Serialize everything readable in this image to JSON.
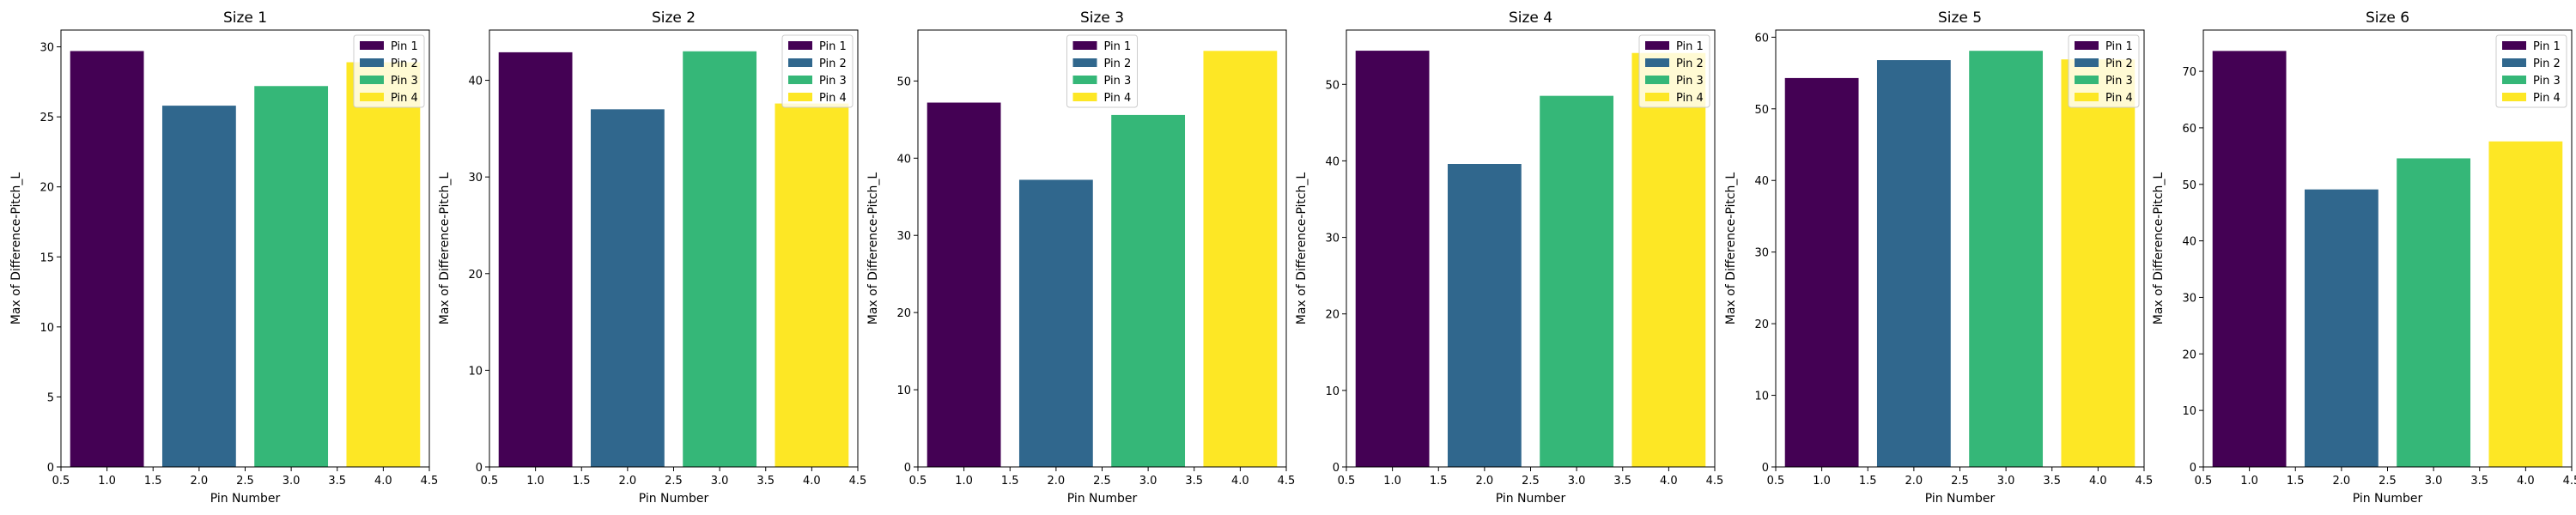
{
  "chart_data": [
    {
      "type": "bar",
      "title": "Size 1",
      "xlabel": "Pin Number",
      "ylabel": "Max of Difference-Pitch_L",
      "x": [
        1,
        2,
        3,
        4
      ],
      "values": [
        29.7,
        25.8,
        27.2,
        28.9
      ],
      "xlim": [
        0.5,
        4.5
      ],
      "ylim": [
        0,
        31.2
      ],
      "xticks": [
        "0.5",
        "1.0",
        "1.5",
        "2.0",
        "2.5",
        "3.0",
        "3.5",
        "4.0",
        "4.5"
      ],
      "yticks": [
        0,
        5,
        10,
        15,
        20,
        25,
        30
      ],
      "legend": [
        "Pin 1",
        "Pin 2",
        "Pin 3",
        "Pin 4"
      ],
      "legend_loc": "top-right",
      "grid": false
    },
    {
      "type": "bar",
      "title": "Size 2",
      "xlabel": "Pin Number",
      "ylabel": "Max of Difference-Pitch_L",
      "x": [
        1,
        2,
        3,
        4
      ],
      "values": [
        42.9,
        37.0,
        43.0,
        37.6
      ],
      "xlim": [
        0.5,
        4.5
      ],
      "ylim": [
        0,
        45.2
      ],
      "xticks": [
        "0.5",
        "1.0",
        "1.5",
        "2.0",
        "2.5",
        "3.0",
        "3.5",
        "4.0",
        "4.5"
      ],
      "yticks": [
        0,
        10,
        20,
        30,
        40
      ],
      "legend": [
        "Pin 1",
        "Pin 2",
        "Pin 3",
        "Pin 4"
      ],
      "legend_loc": "top-right",
      "grid": false
    },
    {
      "type": "bar",
      "title": "Size 3",
      "xlabel": "Pin Number",
      "ylabel": "Max of Difference-Pitch_L",
      "x": [
        1,
        2,
        3,
        4
      ],
      "values": [
        47.2,
        37.2,
        45.6,
        53.9
      ],
      "xlim": [
        0.5,
        4.5
      ],
      "ylim": [
        0,
        56.6
      ],
      "xticks": [
        "0.5",
        "1.0",
        "1.5",
        "2.0",
        "2.5",
        "3.0",
        "3.5",
        "4.0",
        "4.5"
      ],
      "yticks": [
        0,
        10,
        20,
        30,
        40,
        50
      ],
      "legend": [
        "Pin 1",
        "Pin 2",
        "Pin 3",
        "Pin 4"
      ],
      "legend_loc": "top-center",
      "grid": false
    },
    {
      "type": "bar",
      "title": "Size 4",
      "xlabel": "Pin Number",
      "ylabel": "Max of Difference-Pitch_L",
      "x": [
        1,
        2,
        3,
        4
      ],
      "values": [
        54.4,
        39.6,
        48.5,
        54.1
      ],
      "xlim": [
        0.5,
        4.5
      ],
      "ylim": [
        0,
        57.1
      ],
      "xticks": [
        "0.5",
        "1.0",
        "1.5",
        "2.0",
        "2.5",
        "3.0",
        "3.5",
        "4.0",
        "4.5"
      ],
      "yticks": [
        0,
        10,
        20,
        30,
        40,
        50
      ],
      "legend": [
        "Pin 1",
        "Pin 2",
        "Pin 3",
        "Pin 4"
      ],
      "legend_loc": "top-right",
      "grid": false
    },
    {
      "type": "bar",
      "title": "Size 5",
      "xlabel": "Pin Number",
      "ylabel": "Max of Difference-Pitch_L",
      "x": [
        1,
        2,
        3,
        4
      ],
      "values": [
        54.3,
        56.8,
        58.1,
        56.9
      ],
      "xlim": [
        0.5,
        4.5
      ],
      "ylim": [
        0,
        61.0
      ],
      "xticks": [
        "0.5",
        "1.0",
        "1.5",
        "2.0",
        "2.5",
        "3.0",
        "3.5",
        "4.0",
        "4.5"
      ],
      "yticks": [
        0,
        10,
        20,
        30,
        40,
        50,
        60
      ],
      "legend": [
        "Pin 1",
        "Pin 2",
        "Pin 3",
        "Pin 4"
      ],
      "legend_loc": "top-right",
      "grid": false
    },
    {
      "type": "bar",
      "title": "Size 6",
      "xlabel": "Pin Number",
      "ylabel": "Max of Difference-Pitch_L",
      "x": [
        1,
        2,
        3,
        4
      ],
      "values": [
        73.6,
        49.1,
        54.6,
        57.6
      ],
      "xlim": [
        0.5,
        4.5
      ],
      "ylim": [
        0,
        77.3
      ],
      "xticks": [
        "0.5",
        "1.0",
        "1.5",
        "2.0",
        "2.5",
        "3.0",
        "3.5",
        "4.0",
        "4.5"
      ],
      "yticks": [
        0,
        10,
        20,
        30,
        40,
        50,
        60,
        70
      ],
      "legend": [
        "Pin 1",
        "Pin 2",
        "Pin 3",
        "Pin 4"
      ],
      "legend_loc": "top-right",
      "grid": false
    }
  ],
  "colors": [
    "#440154",
    "#30678d",
    "#35b778",
    "#fde725"
  ]
}
